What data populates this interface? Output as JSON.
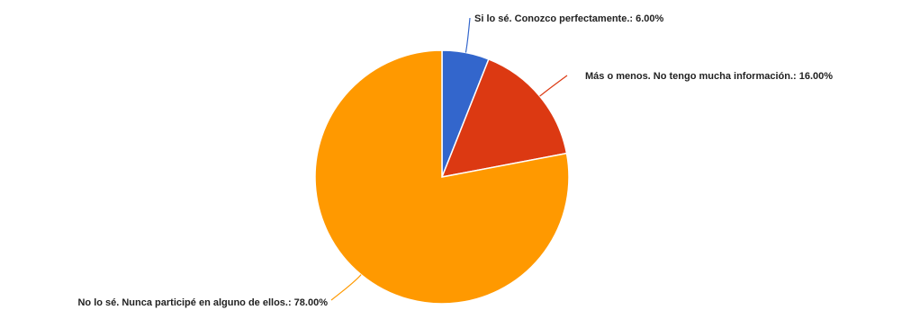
{
  "chart_data": {
    "type": "pie",
    "slices": [
      {
        "label": "Si lo sé. Conozco perfectamente.: 6.00%",
        "value": 6.0,
        "color": "#3366cc"
      },
      {
        "label": "Más o menos. No tengo mucha información.: 16.00%",
        "value": 16.0,
        "color": "#dc3912"
      },
      {
        "label": "No lo sé. Nunca participé en alguno de ellos.: 78.00%",
        "value": 78.0,
        "color": "#ff9900"
      }
    ],
    "start_angle": "12 o'clock",
    "direction": "clockwise",
    "legend": "none"
  }
}
